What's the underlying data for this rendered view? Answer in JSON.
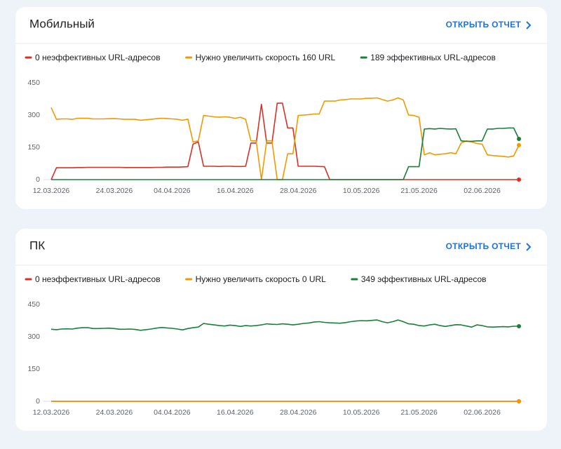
{
  "chart_data": [
    {
      "type": "line",
      "title": "Мобильный",
      "action": "ОТКРЫТЬ ОТЧЕТ",
      "x": [
        "12.03.2026",
        "13.03.2026",
        "14.03.2026",
        "15.03.2026",
        "16.03.2026",
        "17.03.2026",
        "18.03.2026",
        "19.03.2026",
        "20.03.2026",
        "21.03.2026",
        "22.03.2026",
        "23.03.2026",
        "24.03.2026",
        "25.03.2026",
        "26.03.2026",
        "27.03.2026",
        "28.03.2026",
        "29.03.2026",
        "30.03.2026",
        "31.03.2026",
        "01.04.2026",
        "02.04.2026",
        "03.04.2026",
        "04.04.2026",
        "05.04.2026",
        "06.04.2026",
        "07.04.2026",
        "08.04.2026",
        "09.04.2026",
        "10.04.2026",
        "11.04.2026",
        "12.04.2026",
        "13.04.2026",
        "14.04.2026",
        "15.04.2026",
        "16.04.2026",
        "17.04.2026",
        "18.04.2026",
        "19.04.2026",
        "20.04.2026",
        "21.04.2026",
        "22.04.2026",
        "23.04.2026",
        "24.04.2026",
        "25.04.2026",
        "26.04.2026",
        "27.04.2026",
        "28.04.2026",
        "29.04.2026",
        "30.04.2026",
        "01.05.2026",
        "02.05.2026",
        "03.05.2026",
        "04.05.2026",
        "05.05.2026",
        "06.05.2026",
        "07.05.2026",
        "08.05.2026",
        "09.05.2026",
        "10.05.2026",
        "11.05.2026",
        "12.05.2026",
        "13.05.2026",
        "14.05.2026",
        "15.05.2026",
        "16.05.2026",
        "17.05.2026",
        "18.05.2026",
        "19.05.2026",
        "20.05.2026",
        "21.05.2026",
        "22.05.2026",
        "23.05.2026",
        "24.05.2026",
        "25.05.2026",
        "26.05.2026",
        "27.05.2026",
        "28.05.2026",
        "29.05.2026",
        "30.05.2026",
        "31.05.2026",
        "01.06.2026",
        "02.06.2026",
        "03.06.2026",
        "04.06.2026",
        "05.06.2026",
        "06.06.2026",
        "07.06.2026",
        "08.06.2026",
        "09.06.2026"
      ],
      "xlim": [
        "12.03.2026",
        "09.06.2026"
      ],
      "xticks": [
        "12.03.2026",
        "24.03.2026",
        "04.04.2026",
        "16.04.2026",
        "28.04.2026",
        "10.05.2026",
        "21.05.2026",
        "02.06.2026"
      ],
      "ylim": [
        0,
        450
      ],
      "yticks": [
        0,
        150,
        300,
        450
      ],
      "series": [
        {
          "name": "0 неэффективных URL-адресов",
          "color": "#d93025",
          "values": [
            0,
            55,
            55,
            55,
            55,
            56,
            56,
            57,
            57,
            57,
            57,
            57,
            57,
            57,
            56,
            56,
            56,
            56,
            56,
            56,
            57,
            57,
            58,
            58,
            58,
            59,
            60,
            165,
            175,
            62,
            62,
            62,
            61,
            62,
            62,
            61,
            61,
            62,
            170,
            170,
            350,
            170,
            170,
            355,
            355,
            240,
            240,
            62,
            62,
            62,
            62,
            61,
            60,
            0,
            0,
            0,
            0,
            0,
            0,
            0,
            0,
            0,
            0,
            0,
            0,
            0,
            0,
            0,
            0,
            0,
            0,
            0,
            0,
            0,
            0,
            0,
            0,
            0,
            0,
            0,
            0,
            0,
            0,
            0,
            0,
            0,
            0,
            0,
            0,
            0
          ]
        },
        {
          "name": "Нужно увеличить скорость 160 URL",
          "color": "#f29900",
          "values": [
            335,
            280,
            282,
            282,
            280,
            285,
            285,
            285,
            282,
            282,
            282,
            283,
            284,
            282,
            280,
            280,
            280,
            276,
            278,
            280,
            283,
            285,
            284,
            282,
            280,
            276,
            281,
            175,
            180,
            298,
            295,
            292,
            290,
            292,
            290,
            285,
            290,
            280,
            180,
            180,
            0,
            180,
            180,
            0,
            0,
            120,
            120,
            298,
            300,
            302,
            305,
            305,
            365,
            365,
            365,
            370,
            372,
            375,
            375,
            375,
            378,
            378,
            380,
            372,
            365,
            370,
            380,
            370,
            300,
            298,
            290,
            115,
            125,
            115,
            118,
            120,
            125,
            120,
            170,
            180,
            175,
            168,
            165,
            115,
            112,
            110,
            108,
            105,
            110,
            160
          ]
        },
        {
          "name": "189 эффективных URL-адресов",
          "color": "#188038",
          "values": [
            0,
            0,
            0,
            0,
            0,
            0,
            0,
            0,
            0,
            0,
            0,
            0,
            0,
            0,
            0,
            0,
            0,
            0,
            0,
            0,
            0,
            0,
            0,
            0,
            0,
            0,
            0,
            0,
            0,
            0,
            0,
            0,
            0,
            0,
            0,
            0,
            0,
            0,
            0,
            0,
            0,
            0,
            0,
            0,
            0,
            0,
            0,
            0,
            0,
            0,
            0,
            0,
            0,
            0,
            0,
            0,
            0,
            0,
            0,
            0,
            0,
            0,
            0,
            0,
            0,
            0,
            0,
            0,
            60,
            60,
            60,
            235,
            237,
            235,
            238,
            236,
            235,
            236,
            180,
            178,
            178,
            180,
            180,
            235,
            235,
            238,
            238,
            240,
            240,
            189
          ]
        }
      ]
    },
    {
      "type": "line",
      "title": "ПК",
      "action": "ОТКРЫТЬ ОТЧЕТ",
      "x": [
        "12.03.2026",
        "13.03.2026",
        "14.03.2026",
        "15.03.2026",
        "16.03.2026",
        "17.03.2026",
        "18.03.2026",
        "19.03.2026",
        "20.03.2026",
        "21.03.2026",
        "22.03.2026",
        "23.03.2026",
        "24.03.2026",
        "25.03.2026",
        "26.03.2026",
        "27.03.2026",
        "28.03.2026",
        "29.03.2026",
        "30.03.2026",
        "31.03.2026",
        "01.04.2026",
        "02.04.2026",
        "03.04.2026",
        "04.04.2026",
        "05.04.2026",
        "06.04.2026",
        "07.04.2026",
        "08.04.2026",
        "09.04.2026",
        "10.04.2026",
        "11.04.2026",
        "12.04.2026",
        "13.04.2026",
        "14.04.2026",
        "15.04.2026",
        "16.04.2026",
        "17.04.2026",
        "18.04.2026",
        "19.04.2026",
        "20.04.2026",
        "21.04.2026",
        "22.04.2026",
        "23.04.2026",
        "24.04.2026",
        "25.04.2026",
        "26.04.2026",
        "27.04.2026",
        "28.04.2026",
        "29.04.2026",
        "30.04.2026",
        "01.05.2026",
        "02.05.2026",
        "03.05.2026",
        "04.05.2026",
        "05.05.2026",
        "06.05.2026",
        "07.05.2026",
        "08.05.2026",
        "09.05.2026",
        "10.05.2026",
        "11.05.2026",
        "12.05.2026",
        "13.05.2026",
        "14.05.2026",
        "15.05.2026",
        "16.05.2026",
        "17.05.2026",
        "18.05.2026",
        "19.05.2026",
        "20.05.2026",
        "21.05.2026",
        "22.05.2026",
        "23.05.2026",
        "24.05.2026",
        "25.05.2026",
        "26.05.2026",
        "27.05.2026",
        "28.05.2026",
        "29.05.2026",
        "30.05.2026",
        "31.05.2026",
        "01.06.2026",
        "02.06.2026",
        "03.06.2026",
        "04.06.2026",
        "05.06.2026",
        "06.06.2026",
        "07.06.2026",
        "08.06.2026",
        "09.06.2026"
      ],
      "xlim": [
        "12.03.2026",
        "09.06.2026"
      ],
      "xticks": [
        "12.03.2026",
        "24.03.2026",
        "04.04.2026",
        "16.04.2026",
        "28.04.2026",
        "10.05.2026",
        "21.05.2026",
        "02.06.2026"
      ],
      "ylim": [
        0,
        450
      ],
      "yticks": [
        0,
        150,
        300,
        450
      ],
      "series": [
        {
          "name": "0 неэффективных URL-адресов",
          "color": "#d93025",
          "values": [
            0,
            0,
            0,
            0,
            0,
            0,
            0,
            0,
            0,
            0,
            0,
            0,
            0,
            0,
            0,
            0,
            0,
            0,
            0,
            0,
            0,
            0,
            0,
            0,
            0,
            0,
            0,
            0,
            0,
            0,
            0,
            0,
            0,
            0,
            0,
            0,
            0,
            0,
            0,
            0,
            0,
            0,
            0,
            0,
            0,
            0,
            0,
            0,
            0,
            0,
            0,
            0,
            0,
            0,
            0,
            0,
            0,
            0,
            0,
            0,
            0,
            0,
            0,
            0,
            0,
            0,
            0,
            0,
            0,
            0,
            0,
            0,
            0,
            0,
            0,
            0,
            0,
            0,
            0,
            0,
            0,
            0,
            0,
            0,
            0,
            0,
            0,
            0,
            0,
            0
          ]
        },
        {
          "name": "Нужно увеличить скорость 0 URL",
          "color": "#f29900",
          "values": [
            0,
            0,
            0,
            0,
            0,
            0,
            0,
            0,
            0,
            0,
            0,
            0,
            0,
            0,
            0,
            0,
            0,
            0,
            0,
            0,
            0,
            0,
            0,
            0,
            0,
            0,
            0,
            0,
            0,
            0,
            0,
            0,
            0,
            0,
            0,
            0,
            0,
            0,
            0,
            0,
            0,
            0,
            0,
            0,
            0,
            0,
            0,
            0,
            0,
            0,
            0,
            0,
            0,
            0,
            0,
            0,
            0,
            0,
            0,
            0,
            0,
            0,
            0,
            0,
            0,
            0,
            0,
            0,
            0,
            0,
            0,
            0,
            0,
            0,
            0,
            0,
            0,
            0,
            0,
            0,
            0,
            0,
            0,
            0,
            0,
            0,
            0,
            0,
            0,
            0
          ]
        },
        {
          "name": "349 эффективных URL-адресов",
          "color": "#188038",
          "values": [
            335,
            333,
            336,
            337,
            336,
            340,
            342,
            342,
            338,
            338,
            339,
            340,
            338,
            335,
            335,
            336,
            334,
            330,
            333,
            336,
            340,
            343,
            341,
            339,
            336,
            332,
            338,
            342,
            345,
            362,
            358,
            355,
            352,
            350,
            354,
            352,
            348,
            352,
            350,
            352,
            355,
            360,
            358,
            357,
            360,
            358,
            355,
            358,
            362,
            364,
            368,
            370,
            367,
            365,
            364,
            363,
            366,
            370,
            373,
            375,
            374,
            376,
            378,
            370,
            365,
            370,
            378,
            370,
            360,
            358,
            352,
            350,
            355,
            358,
            352,
            348,
            352,
            356,
            355,
            350,
            345,
            355,
            352,
            346,
            345,
            346,
            347,
            346,
            349,
            349
          ]
        }
      ]
    }
  ]
}
